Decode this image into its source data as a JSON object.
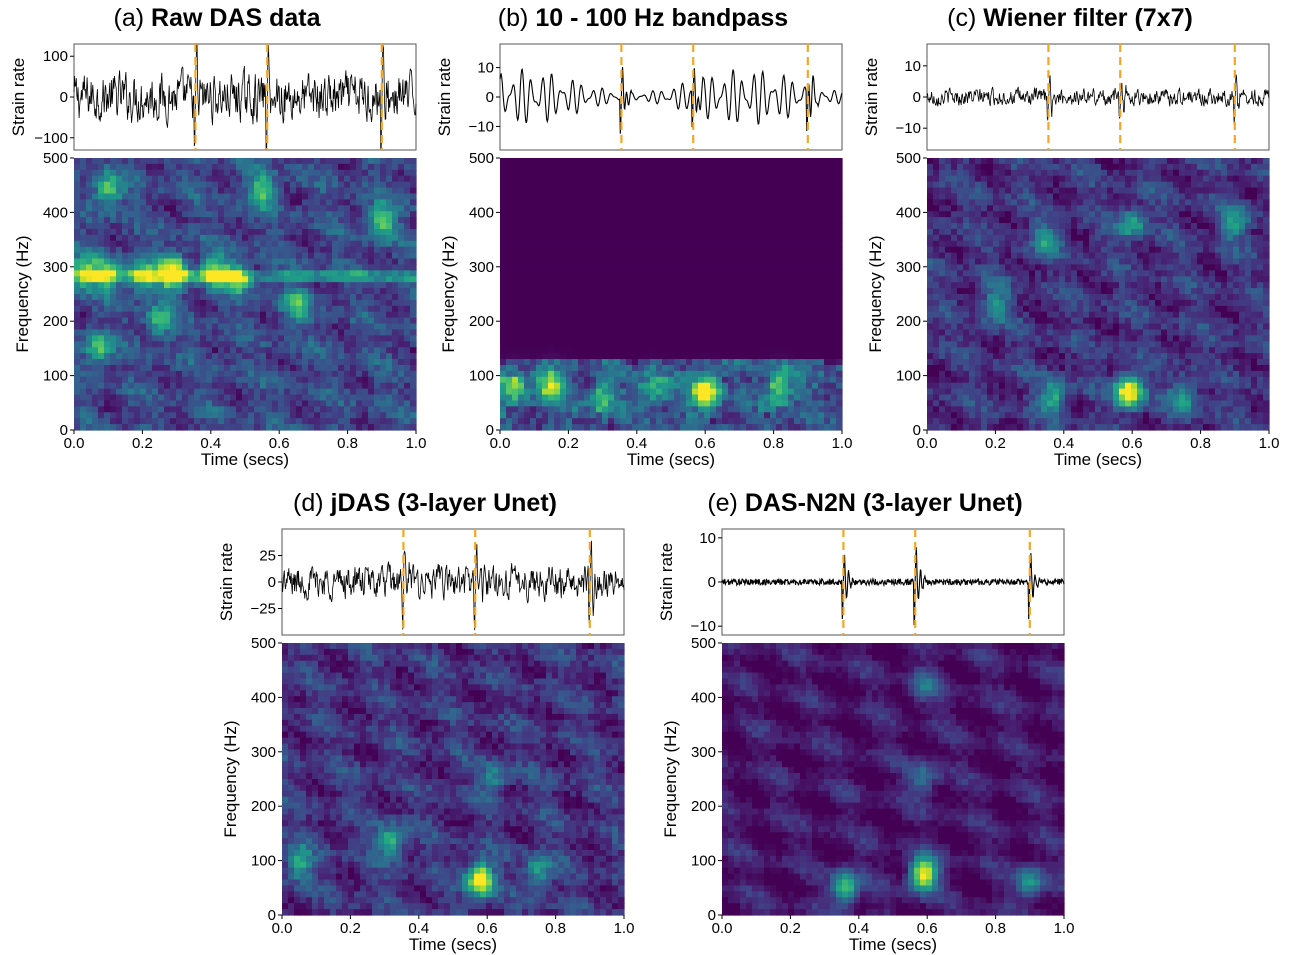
{
  "colors": {
    "trace": "#000000",
    "marker": "#f5a623",
    "frame": "#555555"
  },
  "chart_data": [
    {
      "type": "line+heatmap",
      "label": "(a)",
      "title": "Raw DAS data",
      "waveform": {
        "ylabel": "Strain rate",
        "yticks": [
          100,
          0,
          -100
        ],
        "ylim": [
          -130,
          130
        ],
        "amplitude": 75,
        "style": "noise"
      },
      "spectrogram": {
        "ylabel": "Frequency (Hz)",
        "xlabel": "Time (secs)",
        "yticks": [
          0,
          100,
          200,
          300,
          400,
          500
        ],
        "ylim": [
          0,
          500
        ],
        "base_level": 0.22,
        "noise": 0.2,
        "bright": [
          [
            0.29,
            290,
            0.95
          ],
          [
            0.03,
            290,
            0.6
          ],
          [
            0.1,
            285,
            0.55
          ],
          [
            0.2,
            280,
            0.6
          ],
          [
            0.41,
            290,
            0.65
          ],
          [
            0.48,
            280,
            0.55
          ],
          [
            0.1,
            440,
            0.55
          ],
          [
            0.55,
            440,
            0.5
          ],
          [
            0.9,
            385,
            0.6
          ],
          [
            0.07,
            150,
            0.5
          ],
          [
            0.25,
            200,
            0.45
          ],
          [
            0.65,
            230,
            0.45
          ]
        ]
      },
      "xticks": [
        "0.0",
        "0.2",
        "0.4",
        "0.6",
        "0.8",
        "1.0"
      ],
      "xlim": [
        0,
        1
      ],
      "event_markers": [
        0.355,
        0.565,
        0.9
      ]
    },
    {
      "type": "line+heatmap",
      "label": "(b)",
      "title": "10 - 100 Hz bandpass",
      "waveform": {
        "ylabel": "Strain rate",
        "yticks": [
          10,
          0,
          -10
        ],
        "ylim": [
          -18,
          18
        ],
        "amplitude": 8,
        "style": "smooth"
      },
      "spectrogram": {
        "ylabel": "Frequency (Hz)",
        "xlabel": "Time (secs)",
        "yticks": [
          0,
          100,
          200,
          300,
          400,
          500
        ],
        "ylim": [
          0,
          500
        ],
        "base_level": 0.0,
        "noise": 0.18,
        "band_max": 130,
        "bright": [
          [
            0.6,
            70,
            1.0
          ],
          [
            0.04,
            80,
            0.6
          ],
          [
            0.15,
            85,
            0.55
          ],
          [
            0.45,
            75,
            0.5
          ],
          [
            0.82,
            80,
            0.6
          ],
          [
            0.3,
            60,
            0.45
          ]
        ]
      },
      "xticks": [
        "0.0",
        "0.2",
        "0.4",
        "0.6",
        "0.8",
        "1.0"
      ],
      "xlim": [
        0,
        1
      ],
      "event_markers": [
        0.355,
        0.565,
        0.9
      ]
    },
    {
      "type": "line+heatmap",
      "label": "(c)",
      "title": "Wiener filter (7x7)",
      "waveform": {
        "ylabel": "Strain rate",
        "yticks": [
          10,
          0,
          -10
        ],
        "ylim": [
          -17,
          17
        ],
        "amplitude": 3.5,
        "style": "noise"
      },
      "spectrogram": {
        "ylabel": "Frequency (Hz)",
        "xlabel": "Time (secs)",
        "yticks": [
          0,
          100,
          200,
          300,
          400,
          500
        ],
        "ylim": [
          0,
          500
        ],
        "base_level": 0.15,
        "noise": 0.18,
        "bright": [
          [
            0.59,
            70,
            1.0
          ],
          [
            0.37,
            60,
            0.5
          ],
          [
            0.6,
            380,
            0.45
          ],
          [
            0.35,
            350,
            0.4
          ],
          [
            0.9,
            380,
            0.4
          ],
          [
            0.2,
            230,
            0.4
          ],
          [
            0.75,
            60,
            0.45
          ]
        ]
      },
      "xticks": [
        "0.0",
        "0.2",
        "0.4",
        "0.6",
        "0.8",
        "1.0"
      ],
      "xlim": [
        0,
        1
      ],
      "event_markers": [
        0.355,
        0.565,
        0.9
      ]
    },
    {
      "type": "line+heatmap",
      "label": "(d)",
      "title": "jDAS (3-layer Unet)",
      "waveform": {
        "ylabel": "Strain rate",
        "yticks": [
          25,
          0,
          -25
        ],
        "ylim": [
          -50,
          50
        ],
        "amplitude": 20,
        "style": "noise"
      },
      "spectrogram": {
        "ylabel": "Frequency (Hz)",
        "xlabel": "Time (secs)",
        "yticks": [
          0,
          100,
          200,
          300,
          400,
          500
        ],
        "ylim": [
          0,
          500
        ],
        "base_level": 0.15,
        "noise": 0.18,
        "bright": [
          [
            0.58,
            65,
            1.0
          ],
          [
            0.32,
            135,
            0.55
          ],
          [
            0.05,
            95,
            0.5
          ],
          [
            0.75,
            80,
            0.45
          ],
          [
            0.62,
            250,
            0.35
          ]
        ]
      },
      "xticks": [
        "0.0",
        "0.2",
        "0.4",
        "0.6",
        "0.8",
        "1.0"
      ],
      "xlim": [
        0,
        1
      ],
      "event_markers": [
        0.355,
        0.565,
        0.9
      ]
    },
    {
      "type": "line+heatmap",
      "label": "(e)",
      "title": "DAS-N2N (3-layer Unet)",
      "waveform": {
        "ylabel": "Strain rate",
        "yticks": [
          10,
          0,
          -10
        ],
        "ylim": [
          -12,
          12
        ],
        "amplitude": 0.6,
        "style": "quiet"
      },
      "spectrogram": {
        "ylabel": "Frequency (Hz)",
        "xlabel": "Time (secs)",
        "yticks": [
          0,
          100,
          200,
          300,
          400,
          500
        ],
        "ylim": [
          0,
          500
        ],
        "base_level": 0.06,
        "noise": 0.1,
        "bright": [
          [
            0.59,
            75,
            1.0
          ],
          [
            0.36,
            50,
            0.7
          ],
          [
            0.9,
            60,
            0.5
          ],
          [
            0.59,
            250,
            0.35
          ],
          [
            0.59,
            420,
            0.3
          ]
        ]
      },
      "xticks": [
        "0.0",
        "0.2",
        "0.4",
        "0.6",
        "0.8",
        "1.0"
      ],
      "xlim": [
        0,
        1
      ],
      "event_markers": [
        0.355,
        0.565,
        0.9
      ]
    }
  ]
}
